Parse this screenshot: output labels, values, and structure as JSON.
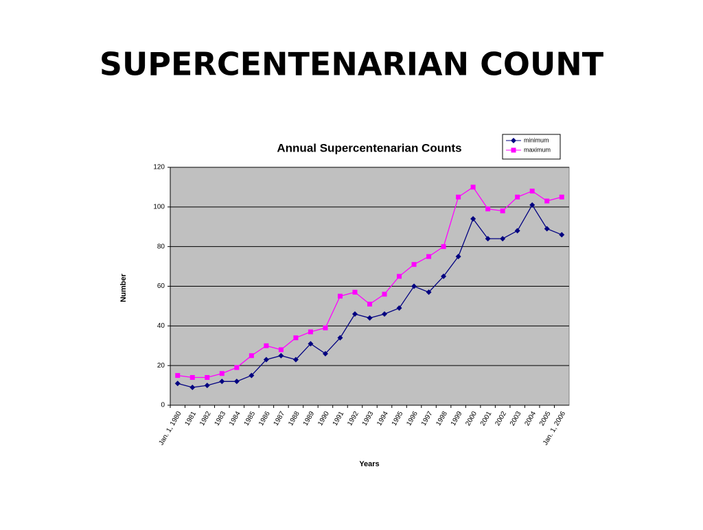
{
  "title": "SUPERCENTENARIAN COUNT",
  "chart_data": {
    "type": "line",
    "title": "Annual Supercentenarian Counts",
    "x_label": "Years",
    "y_label": "Number",
    "categories": [
      "Jan. 1, 1980",
      "1981",
      "1982",
      "1983",
      "1984",
      "1985",
      "1986",
      "1987",
      "1988",
      "1989",
      "1990",
      "1991",
      "1992",
      "1993",
      "1994",
      "1995",
      "1996",
      "1997",
      "1998",
      "1999",
      "2000",
      "2001",
      "2002",
      "2003",
      "2004",
      "2005",
      "Jan. 1, 2006"
    ],
    "series": [
      {
        "name": "minimum",
        "color": "#000080",
        "marker": "diamond",
        "values": [
          11,
          9,
          10,
          12,
          12,
          15,
          23,
          25,
          23,
          31,
          26,
          34,
          46,
          44,
          46,
          49,
          60,
          57,
          65,
          75,
          94,
          84,
          84,
          88,
          101,
          89,
          86
        ]
      },
      {
        "name": "maximum",
        "color": "#ff00ff",
        "marker": "square",
        "values": [
          15,
          14,
          14,
          16,
          19,
          25,
          30,
          28,
          34,
          37,
          39,
          55,
          57,
          51,
          56,
          65,
          71,
          75,
          80,
          105,
          110,
          99,
          98,
          105,
          108,
          103,
          105
        ]
      }
    ],
    "ylim": [
      0,
      120
    ],
    "yticks": [
      0,
      20,
      40,
      60,
      80,
      100,
      120
    ],
    "grid": true,
    "legend": "top-right",
    "plot_background": "#c0c0c0"
  }
}
